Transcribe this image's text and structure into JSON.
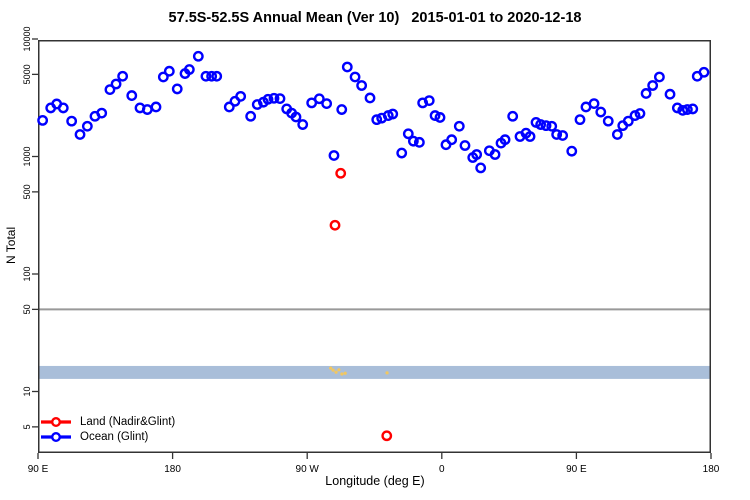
{
  "title": "57.5S-52.5S Annual Mean (Ver 10)   2015-01-01 to 2020-12-18",
  "chart_data": {
    "type": "scatter",
    "title": "57.5S-52.5S Annual Mean (Ver 10)   2015-01-01 to 2020-12-18",
    "xlabel": "Longitude (deg E)",
    "ylabel": "N Total",
    "y_scale": "log",
    "grid": false,
    "x_axis": {
      "range": [
        90,
        540
      ],
      "ticks": [
        {
          "value": 90,
          "label": "90 E"
        },
        {
          "value": 180,
          "label": "180"
        },
        {
          "value": 270,
          "label": "90 W"
        },
        {
          "value": 360,
          "label": "0"
        },
        {
          "value": 450,
          "label": "90 E"
        },
        {
          "value": 540,
          "label": "180"
        }
      ]
    },
    "y_axis": {
      "range": [
        4,
        10000
      ],
      "ticks": [
        {
          "value": 10000,
          "label": "10000"
        },
        {
          "value": 5000,
          "label": "5000"
        },
        {
          "value": 1000,
          "label": "1000"
        },
        {
          "value": 500,
          "label": "500"
        },
        {
          "value": 100,
          "label": "100"
        },
        {
          "value": 50,
          "label": "50"
        },
        {
          "value": 10,
          "label": "10"
        },
        {
          "value": 5,
          "label": "5"
        }
      ]
    },
    "reference_line": {
      "value": 50,
      "color": "#999999"
    },
    "band": {
      "from": 12.8,
      "to": 16.5,
      "color": "#a9bed9"
    },
    "series": [
      {
        "name": "Ocean (Glint)",
        "color": "#0000ff",
        "marker": "open-circle",
        "points": [
          [
            93.1,
            2030
          ],
          [
            98.5,
            2590
          ],
          [
            102.5,
            2800
          ],
          [
            106.9,
            2590
          ],
          [
            112.5,
            2000
          ],
          [
            118.1,
            1540
          ],
          [
            123,
            1810
          ],
          [
            128.1,
            2200
          ],
          [
            132.6,
            2340
          ],
          [
            138.1,
            3710
          ],
          [
            142.2,
            4140
          ],
          [
            146.6,
            4820
          ],
          [
            152.7,
            3300
          ],
          [
            158.2,
            2590
          ],
          [
            163.1,
            2510
          ],
          [
            168.9,
            2640
          ],
          [
            173.8,
            4750
          ],
          [
            177.8,
            5320
          ],
          [
            183.1,
            3760
          ],
          [
            188.3,
            5080
          ],
          [
            191.2,
            5500
          ],
          [
            197.2,
            7130
          ],
          [
            202.3,
            4820
          ],
          [
            206.1,
            4820
          ],
          [
            209.5,
            4820
          ],
          [
            217.9,
            2640
          ],
          [
            221.7,
            2950
          ],
          [
            225.5,
            3250
          ],
          [
            232.2,
            2200
          ],
          [
            236.6,
            2770
          ],
          [
            240.7,
            2900
          ],
          [
            243.8,
            3070
          ],
          [
            247.8,
            3130
          ],
          [
            251.8,
            3110
          ],
          [
            256.3,
            2540
          ],
          [
            259.6,
            2340
          ],
          [
            262.5,
            2170
          ],
          [
            267,
            1870
          ],
          [
            273,
            2860
          ],
          [
            278.1,
            3100
          ],
          [
            283,
            2820
          ],
          [
            287.9,
            1020
          ],
          [
            293.1,
            2510
          ],
          [
            296.8,
            5780
          ],
          [
            302,
            4750
          ],
          [
            306.4,
            4020
          ],
          [
            312,
            3150
          ],
          [
            316.5,
            2060
          ],
          [
            319.8,
            2120
          ],
          [
            324.2,
            2230
          ],
          [
            327.2,
            2300
          ],
          [
            333.2,
            1070
          ],
          [
            337.6,
            1560
          ],
          [
            341,
            1350
          ],
          [
            345,
            1320
          ],
          [
            347.2,
            2860
          ],
          [
            351.6,
            2990
          ],
          [
            355.5,
            2230
          ],
          [
            358.8,
            2150
          ],
          [
            362.8,
            1260
          ],
          [
            366.6,
            1390
          ],
          [
            371.7,
            1810
          ],
          [
            375.5,
            1240
          ],
          [
            380.7,
            980
          ],
          [
            383.3,
            1040
          ],
          [
            386,
            800
          ],
          [
            391.8,
            1120
          ],
          [
            395.6,
            1040
          ],
          [
            399.6,
            1300
          ],
          [
            402.3,
            1390
          ],
          [
            407.4,
            2200
          ],
          [
            412.3,
            1480
          ],
          [
            416.3,
            1580
          ],
          [
            419,
            1480
          ],
          [
            423,
            1950
          ],
          [
            426.1,
            1870
          ],
          [
            429.7,
            1830
          ],
          [
            433.5,
            1810
          ],
          [
            436.8,
            1540
          ],
          [
            440.8,
            1510
          ],
          [
            446.9,
            1110
          ],
          [
            452.4,
            2060
          ],
          [
            456.4,
            2640
          ],
          [
            461.8,
            2820
          ],
          [
            466.3,
            2390
          ],
          [
            471.3,
            2000
          ],
          [
            477.4,
            1540
          ],
          [
            481,
            1830
          ],
          [
            484.7,
            2000
          ],
          [
            489.2,
            2230
          ],
          [
            492.5,
            2320
          ],
          [
            496.6,
            3440
          ],
          [
            501,
            4020
          ],
          [
            505.5,
            4750
          ],
          [
            512.6,
            3390
          ],
          [
            517.5,
            2590
          ],
          [
            521.1,
            2470
          ],
          [
            524.2,
            2510
          ],
          [
            527.8,
            2540
          ],
          [
            530.8,
            4820
          ],
          [
            535.3,
            5210
          ]
        ]
      },
      {
        "name": "Land (Nadir&Glint)",
        "color": "#ff0000",
        "marker": "open-circle",
        "points": [
          [
            292.4,
            720
          ],
          [
            288.6,
            260
          ],
          [
            323.2,
            4.2
          ]
        ]
      },
      {
        "name": "flagged-marks",
        "color": "#f2c75f",
        "marker": "dot",
        "points": [
          [
            285.7,
            15.8
          ],
          [
            287.3,
            15.2
          ],
          [
            289.3,
            14.6
          ],
          [
            291.2,
            15.3
          ],
          [
            293.2,
            14.1
          ],
          [
            295.4,
            14.3
          ],
          [
            323.4,
            14.4
          ]
        ]
      }
    ],
    "legend": {
      "position": "bottom-left",
      "entries": [
        {
          "label": "Land (Nadir&Glint)",
          "color": "#ff0000"
        },
        {
          "label": "Ocean (Glint)",
          "color": "#0000ff"
        }
      ]
    }
  }
}
